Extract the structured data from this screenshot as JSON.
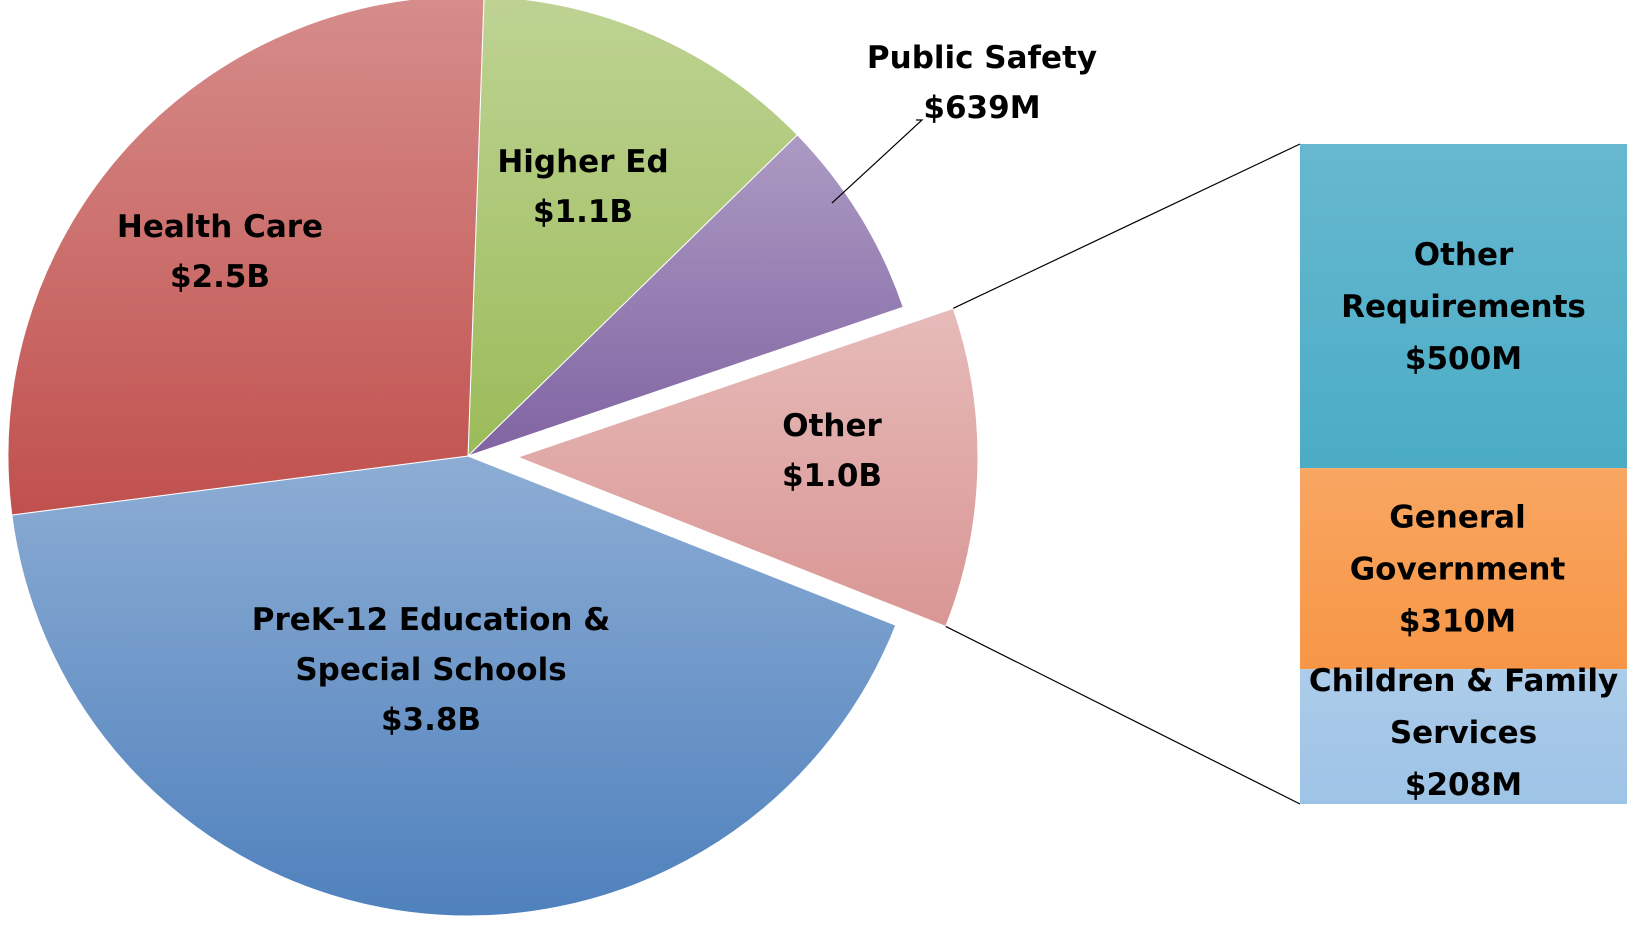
{
  "chart_data": {
    "type": "pie",
    "unit": "$",
    "slices": [
      {
        "label_lines": [
          "Higher Ed",
          "$1.1B"
        ],
        "value": 1.1,
        "color": "#9bbb59"
      },
      {
        "label_lines": [
          "Public Safety",
          "$639M"
        ],
        "value": 0.639,
        "color": "#8064a2"
      },
      {
        "label_lines": [
          "Other",
          "$1.0B"
        ],
        "value": 1.018,
        "color": "#d99694",
        "exploded": true
      },
      {
        "label_lines": [
          "PreK-12 Education &",
          "Special Schools",
          "$3.8B"
        ],
        "value": 3.8,
        "color": "#4f81bd"
      },
      {
        "label_lines": [
          "Health Care",
          "$2.5B"
        ],
        "value": 2.5,
        "color": "#c0504d"
      }
    ],
    "breakdown_of": "Other",
    "breakdown": [
      {
        "label_lines": [
          "Other",
          "Requirements",
          "$500M"
        ],
        "value": 500,
        "color": "#4bacc6"
      },
      {
        "label_lines": [
          "General",
          "Government",
          "$310M"
        ],
        "value": 310,
        "color": "#f79646"
      },
      {
        "label_lines": [
          "Children & Family",
          "Services",
          "$208M"
        ],
        "value": 208,
        "color": "#9dc3e6"
      }
    ]
  }
}
